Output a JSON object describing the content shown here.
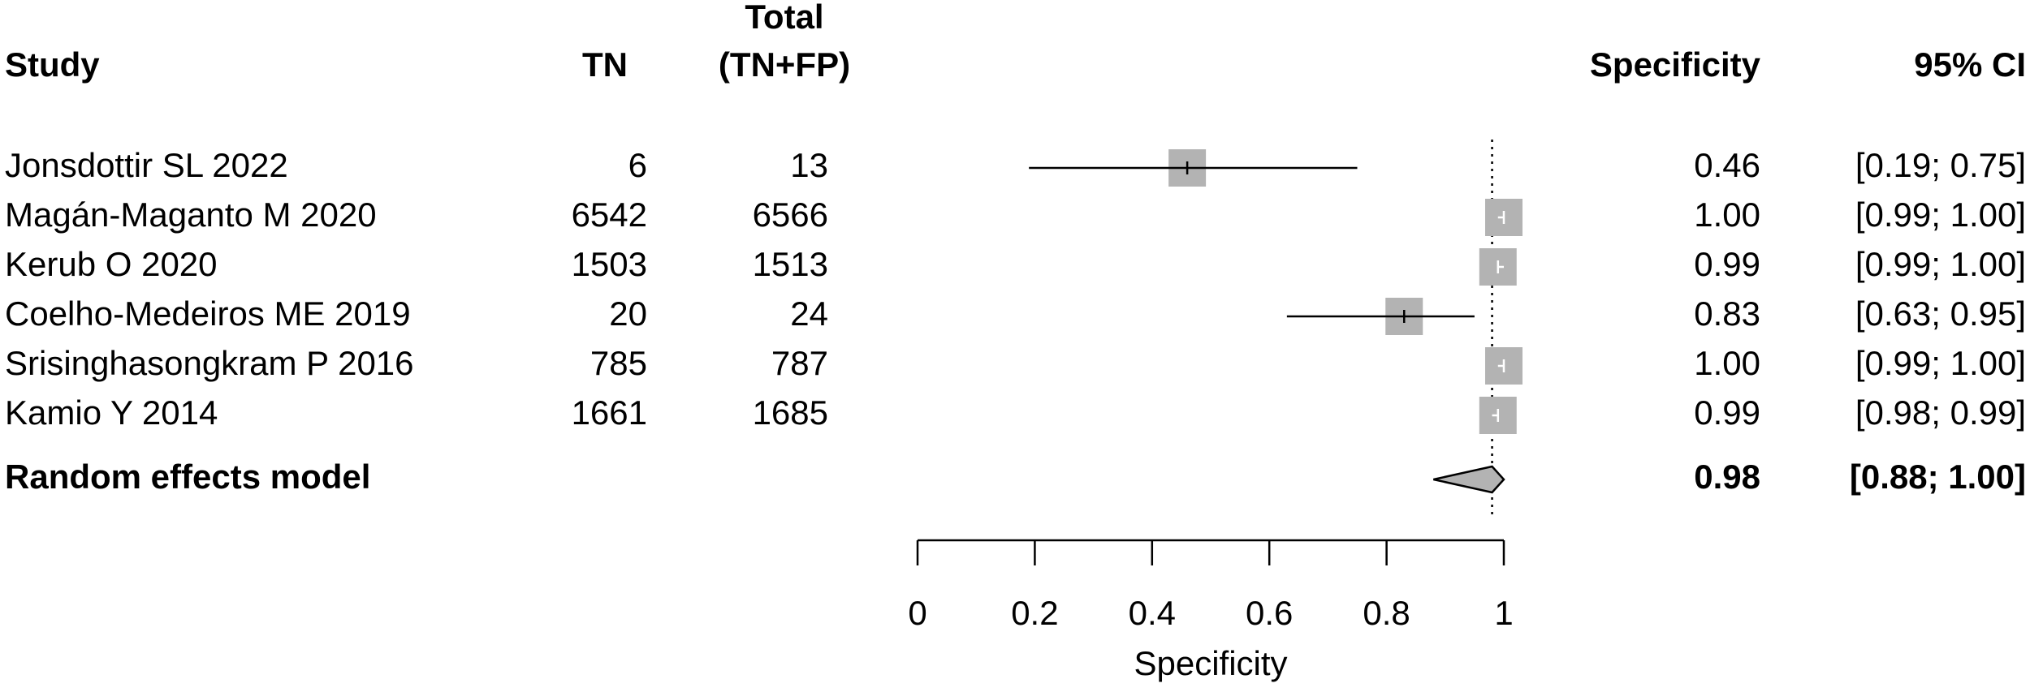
{
  "chart_data": {
    "type": "forest",
    "headers": {
      "study": "Study",
      "tn": "TN",
      "total": [
        "Total",
        "(TN+FP)"
      ],
      "estimate": "Specificity",
      "ci": "95% CI"
    },
    "categories": [
      "Jonsdottir SL 2022",
      "Magán-Maganto M 2020",
      "Kerub O 2020",
      "Coelho-Medeiros ME 2019",
      "Srisinghasongkram P 2016",
      "Kamio Y 2014"
    ],
    "tn": [
      6,
      6542,
      1503,
      20,
      785,
      1661
    ],
    "total": [
      13,
      6566,
      1513,
      24,
      787,
      1685
    ],
    "series": [
      {
        "color": "#b3b3b3",
        "values": [
          0.46,
          1.0,
          0.99,
          0.83,
          1.0,
          0.99
        ],
        "value_labels": [
          "0.46",
          "1.00",
          "0.99",
          "0.83",
          "1.00",
          "0.99"
        ],
        "ci_low": [
          0.19,
          0.99,
          0.99,
          0.63,
          0.99,
          0.98
        ],
        "ci_high": [
          0.75,
          1.0,
          1.0,
          0.95,
          1.0,
          0.99
        ],
        "ci_labels": [
          "[0.19; 0.75]",
          "[0.99; 1.00]",
          "[0.99; 1.00]",
          "[0.63; 0.95]",
          "[0.99; 1.00]",
          "[0.98; 0.99]"
        ]
      }
    ],
    "summary": {
      "label": "Random effects model",
      "value": 0.98,
      "value_label": "0.98",
      "ci_low": 0.88,
      "ci_high": 1.0,
      "ci_label": "[0.88; 1.00]"
    },
    "xlim": [
      0,
      1
    ],
    "xticks": [
      0,
      0.2,
      0.4,
      0.6,
      0.8,
      1
    ],
    "xlabel": "Specificity"
  }
}
